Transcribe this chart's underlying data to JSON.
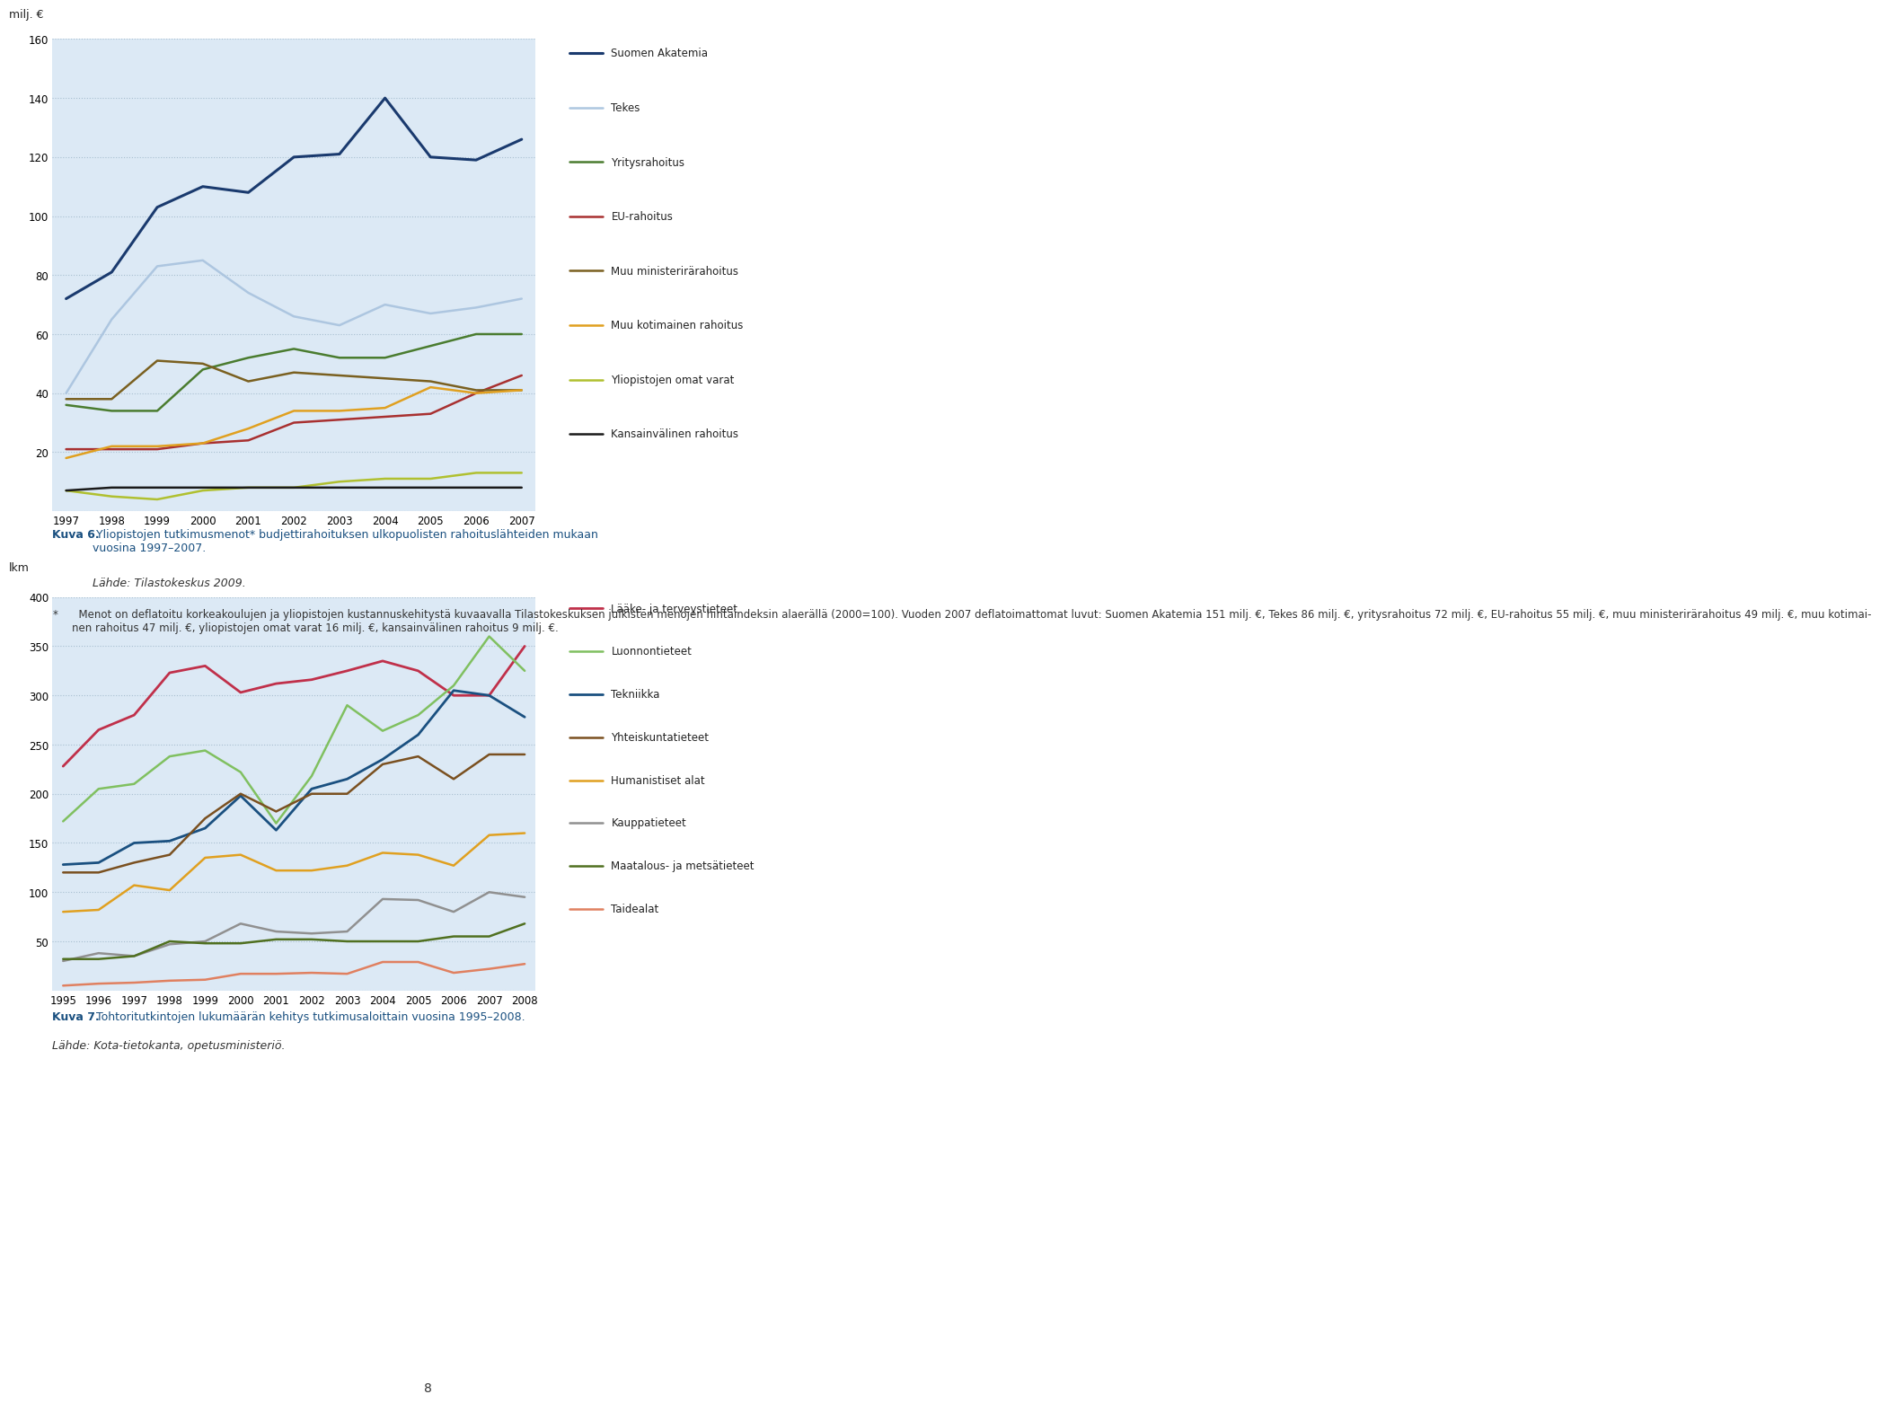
{
  "chart1": {
    "ylabel": "milj. €",
    "years": [
      1997,
      1998,
      1999,
      2000,
      2001,
      2002,
      2003,
      2004,
      2005,
      2006,
      2007
    ],
    "ylim": [
      0,
      160
    ],
    "yticks": [
      0,
      20,
      40,
      60,
      80,
      100,
      120,
      140,
      160
    ],
    "series": {
      "Suomen Akatemia": {
        "color": "#1a3a6e",
        "linewidth": 2.2,
        "values": [
          72,
          81,
          103,
          110,
          108,
          120,
          121,
          140,
          120,
          119,
          126
        ]
      },
      "Tekes": {
        "color": "#adc6e0",
        "linewidth": 1.8,
        "values": [
          40,
          65,
          83,
          85,
          74,
          66,
          63,
          70,
          67,
          69,
          72
        ]
      },
      "Yritysrahoitus": {
        "color": "#4a7c2f",
        "linewidth": 1.8,
        "values": [
          36,
          34,
          34,
          48,
          52,
          55,
          52,
          52,
          56,
          60,
          60
        ]
      },
      "EU-rahoitus": {
        "color": "#a83030",
        "linewidth": 1.8,
        "values": [
          21,
          21,
          21,
          23,
          24,
          30,
          31,
          32,
          33,
          40,
          46
        ]
      },
      "Muu ministerirärahoitus": {
        "color": "#7a6020",
        "linewidth": 1.8,
        "values": [
          38,
          38,
          51,
          50,
          44,
          47,
          46,
          45,
          44,
          41,
          41
        ]
      },
      "Muu kotimainen rahoitus": {
        "color": "#e0a020",
        "linewidth": 1.8,
        "values": [
          18,
          22,
          22,
          23,
          28,
          34,
          34,
          35,
          42,
          40,
          41
        ]
      },
      "Yliopistojen omat varat": {
        "color": "#b0c030",
        "linewidth": 1.8,
        "values": [
          7,
          5,
          4,
          7,
          8,
          8,
          10,
          11,
          11,
          13,
          13
        ]
      },
      "Kansainvälinen rahoitus": {
        "color": "#1a1a1a",
        "linewidth": 1.8,
        "values": [
          7,
          8,
          8,
          8,
          8,
          8,
          8,
          8,
          8,
          8,
          8
        ]
      }
    },
    "legend_order": [
      "Suomen Akatemia",
      "Tekes",
      "Yritysrahoitus",
      "EU-rahoitus",
      "Muu ministerirärahoitus",
      "Muu kotimainen rahoitus",
      "Yliopistojen omat varat",
      "Kansainvälinen rahoitus"
    ]
  },
  "caption1_bold": "Kuva 6.",
  "caption1_text": " Yliopistojen tutkimusmenot* budjettirahoituksen ulkopuolisten rahoituslähteiden mukaan\nvuosina 1997–2007.",
  "caption1_source_italic": "Lähde: Tilastokeskus 2009.",
  "footnote_bullet": "*",
  "footnote_text": "  Menot on deflatoitu korkeakoulujen ja yliopistojen kustannuskehitystä kuvaavalla Tilastokeskuksen julkisten menojen hintaindeksin alaerällä (2000=100). Vuoden 2007 deflatoimattomat luvut: Suomen Akatemia 151 milj. €, Tekes 86 milj. €, yritysrahoitus 72 milj. €, EU-rahoitus 55 milj. €, muu ministerirärahoitus 49 milj. €, muu kotimai-\nnen rahoitus 47 milj. €, yliopistojen omat varat 16 milj. €, kansainvälinen rahoitus 9 milj. €.",
  "chart2": {
    "ylabel": "lkm",
    "years": [
      1995,
      1996,
      1997,
      1998,
      1999,
      2000,
      2001,
      2002,
      2003,
      2004,
      2005,
      2006,
      2007,
      2008
    ],
    "ylim": [
      0,
      400
    ],
    "yticks": [
      0,
      50,
      100,
      150,
      200,
      250,
      300,
      350,
      400
    ],
    "series": {
      "Lääke- ja terveystieteet": {
        "color": "#c0304a",
        "linewidth": 2.0,
        "values": [
          228,
          265,
          280,
          323,
          330,
          303,
          312,
          316,
          325,
          335,
          325,
          300,
          300,
          350
        ]
      },
      "Luonnontieteet": {
        "color": "#80c060",
        "linewidth": 1.8,
        "values": [
          172,
          205,
          210,
          238,
          244,
          222,
          170,
          218,
          290,
          264,
          280,
          310,
          360,
          325
        ]
      },
      "Tekniikka": {
        "color": "#1a5080",
        "linewidth": 2.0,
        "values": [
          128,
          130,
          150,
          152,
          165,
          198,
          163,
          205,
          215,
          235,
          260,
          305,
          300,
          278
        ]
      },
      "Yhteiskuntatieteet": {
        "color": "#7a5020",
        "linewidth": 1.8,
        "values": [
          120,
          120,
          130,
          138,
          175,
          200,
          182,
          200,
          200,
          230,
          238,
          215,
          240,
          240
        ]
      },
      "Humanistiset alat": {
        "color": "#e0a020",
        "linewidth": 1.8,
        "values": [
          80,
          82,
          107,
          102,
          135,
          138,
          122,
          122,
          127,
          140,
          138,
          127,
          158,
          160
        ]
      },
      "Kauppatieteet": {
        "color": "#909090",
        "linewidth": 1.8,
        "values": [
          30,
          38,
          35,
          47,
          50,
          68,
          60,
          58,
          60,
          93,
          92,
          80,
          100,
          95
        ]
      },
      "Maatalous- ja metsätieteet": {
        "color": "#507020",
        "linewidth": 1.8,
        "values": [
          32,
          32,
          35,
          50,
          48,
          48,
          52,
          52,
          50,
          50,
          50,
          55,
          55,
          68
        ]
      },
      "Taidealat": {
        "color": "#e08060",
        "linewidth": 1.8,
        "values": [
          5,
          7,
          8,
          10,
          11,
          17,
          17,
          18,
          17,
          29,
          29,
          18,
          22,
          27
        ]
      }
    },
    "legend_order": [
      "Lääke- ja terveystieteet",
      "Luonnontieteet",
      "Tekniikka",
      "Yhteiskuntatieteet",
      "Humanistiset alat",
      "Kauppatieteet",
      "Maatalous- ja metsätieteet",
      "Taidealat"
    ]
  },
  "caption2_bold": "Kuva 7.",
  "caption2_text": " Tohtoritutkintojen lukumäärän kehitys tutkimusaloittain vuosina 1995–2008.",
  "caption2_source": "Lähde: Kota-tietokanta, opetusministeriö.",
  "page_number": "8",
  "bg_color": "#dce9f5"
}
